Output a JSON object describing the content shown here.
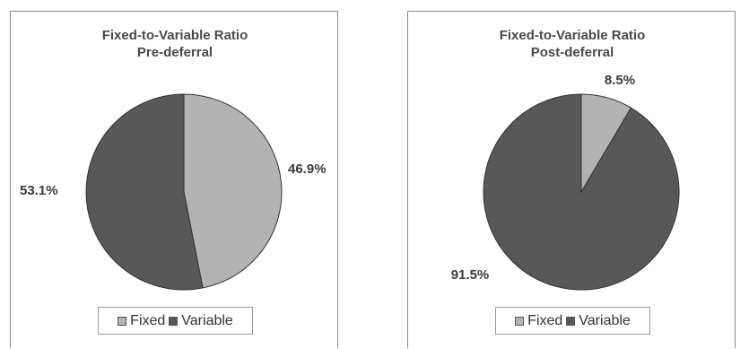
{
  "colors": {
    "fixed": "#b3b3b3",
    "variable": "#585858",
    "stroke": "#333333"
  },
  "chart_data": [
    {
      "type": "pie",
      "title": [
        "Fixed-to-Variable Ratio",
        "Pre-deferral"
      ],
      "categories": [
        "Fixed",
        "Variable"
      ],
      "values": [
        46.9,
        53.1
      ],
      "labels": [
        "46.9%",
        "53.1%"
      ],
      "legend": [
        "Fixed",
        "Variable"
      ],
      "legend_position": "bottom"
    },
    {
      "type": "pie",
      "title": [
        "Fixed-to-Variable Ratio",
        "Post-deferral"
      ],
      "categories": [
        "Fixed",
        "Variable"
      ],
      "values": [
        8.5,
        91.5
      ],
      "labels": [
        "8.5%",
        "91.5%"
      ],
      "legend": [
        "Fixed",
        "Variable"
      ],
      "legend_position": "bottom"
    }
  ]
}
